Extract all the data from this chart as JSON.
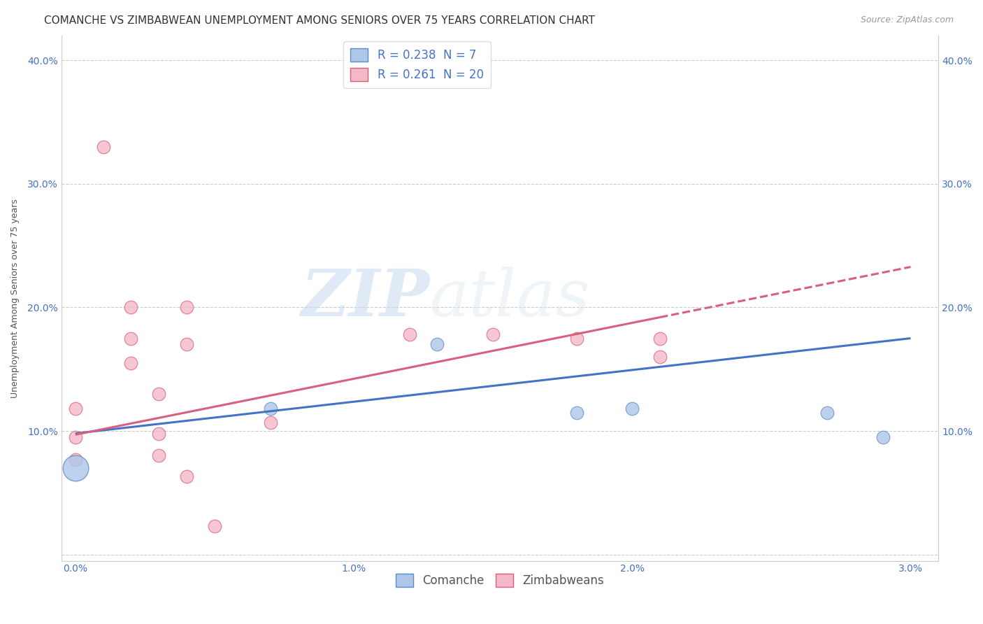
{
  "title": "COMANCHE VS ZIMBABWEAN UNEMPLOYMENT AMONG SENIORS OVER 75 YEARS CORRELATION CHART",
  "source": "Source: ZipAtlas.com",
  "ylabel": "Unemployment Among Seniors over 75 years",
  "xlabel": "",
  "xlim": [
    -0.0005,
    0.031
  ],
  "ylim": [
    -0.005,
    0.42
  ],
  "xticks": [
    0.0,
    0.01,
    0.02,
    0.03
  ],
  "yticks": [
    0.0,
    0.1,
    0.2,
    0.3,
    0.4
  ],
  "xtick_labels": [
    "0.0%",
    "1.0%",
    "2.0%",
    "3.0%"
  ],
  "ytick_labels": [
    "",
    "10.0%",
    "20.0%",
    "30.0%",
    "40.0%"
  ],
  "comanche_R": 0.238,
  "comanche_N": 7,
  "zimbabwean_R": 0.261,
  "zimbabwean_N": 20,
  "comanche_color": "#aec6e8",
  "comanche_edge_color": "#5b8dc8",
  "zimbabwean_color": "#f5b8c8",
  "zimbabwean_edge_color": "#d8607a",
  "comanche_points": [
    [
      0.0,
      0.07
    ],
    [
      0.007,
      0.118
    ],
    [
      0.013,
      0.17
    ],
    [
      0.018,
      0.115
    ],
    [
      0.02,
      0.118
    ],
    [
      0.027,
      0.115
    ],
    [
      0.029,
      0.095
    ]
  ],
  "comanche_large_point": [
    0.0,
    0.07
  ],
  "zimbabwean_points": [
    [
      0.0,
      0.118
    ],
    [
      0.0,
      0.095
    ],
    [
      0.0,
      0.077
    ],
    [
      0.001,
      0.33
    ],
    [
      0.002,
      0.2
    ],
    [
      0.002,
      0.175
    ],
    [
      0.002,
      0.155
    ],
    [
      0.003,
      0.13
    ],
    [
      0.003,
      0.098
    ],
    [
      0.003,
      0.08
    ],
    [
      0.004,
      0.2
    ],
    [
      0.004,
      0.17
    ],
    [
      0.004,
      0.063
    ],
    [
      0.005,
      0.023
    ],
    [
      0.007,
      0.107
    ],
    [
      0.012,
      0.178
    ],
    [
      0.015,
      0.178
    ],
    [
      0.018,
      0.175
    ],
    [
      0.021,
      0.175
    ],
    [
      0.021,
      0.16
    ]
  ],
  "background_color": "#ffffff",
  "grid_color": "#cccccc",
  "watermark_zip": "ZIP",
  "watermark_atlas": "atlas",
  "title_fontsize": 11,
  "axis_label_fontsize": 9,
  "tick_fontsize": 10,
  "legend_fontsize": 12
}
